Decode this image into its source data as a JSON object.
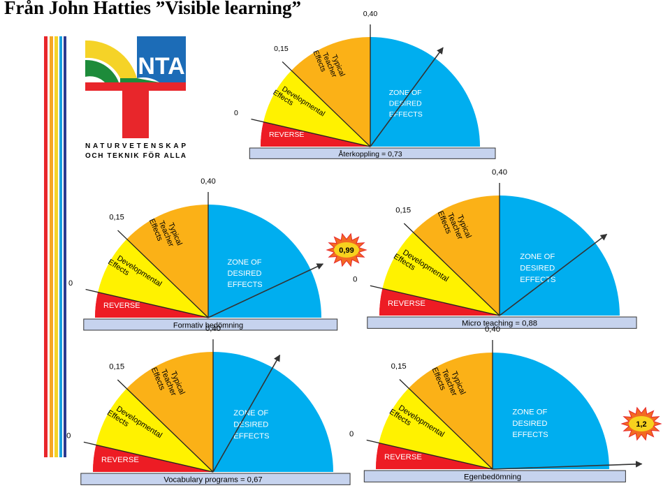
{
  "page": {
    "title": "Från John Hatties ”Visible learning”"
  },
  "logo": {
    "line1": "NATURVETENSKAP",
    "line2": "OCH TEKNIK FÖR ALLA",
    "letters": "NTA"
  },
  "stripe_colors": [
    "#e8262b",
    "#f5a623",
    "#f5d327",
    "#1aa0e0",
    "#2b3990"
  ],
  "colors": {
    "reverse": "#ed1c24",
    "developmental": "#fff200",
    "typical": "#fbb117",
    "desired": "#00aeef",
    "bar": "#c6d3ee"
  },
  "zone_labels": {
    "reverse": "REVERSE",
    "developmental": [
      "Developmental",
      "Effects"
    ],
    "typical": [
      "Typical",
      "Teacher",
      "Effects"
    ],
    "desired": [
      "ZONE OF",
      "DESIRED",
      "EFFECTS"
    ],
    "ticks": [
      "0",
      "0,15",
      "0,40"
    ]
  },
  "gauges": [
    {
      "caption": "Återkoppling = 0,73",
      "value": 0.73
    },
    {
      "caption": "Formativ bedömning",
      "value": 0.99,
      "badge": "0,99"
    },
    {
      "caption": "Micro teaching = 0,88",
      "value": 0.88
    },
    {
      "caption": "Vocabulary programs = 0,67",
      "value": 0.67
    },
    {
      "caption": "Egenbedömning",
      "value": 1.2,
      "badge": "1,2"
    }
  ]
}
